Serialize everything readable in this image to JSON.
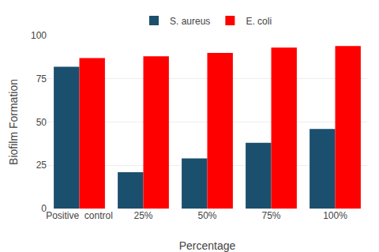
{
  "chart_data": {
    "type": "bar",
    "categories": [
      "Positive  control",
      "25%",
      "50%",
      "75%",
      "100%"
    ],
    "series": [
      {
        "name": "S. aureus",
        "color": "#1b4f6e",
        "values": [
          82,
          21,
          29,
          38,
          46
        ]
      },
      {
        "name": "E. coli",
        "color": "#ff0000",
        "values": [
          87,
          88,
          90,
          93,
          94
        ]
      }
    ],
    "xlabel": "Percentage",
    "ylabel": "Biofilm Formation",
    "ylim": [
      0,
      100
    ],
    "yticks": [
      0,
      25,
      50,
      75,
      100
    ],
    "grid": true,
    "legend": "top"
  }
}
